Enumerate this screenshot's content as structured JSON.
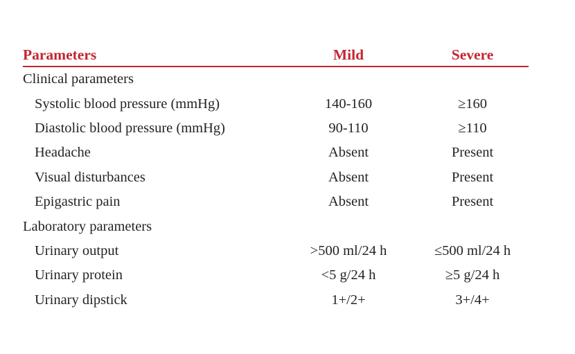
{
  "colors": {
    "accent": "#c32530",
    "text": "#262223",
    "background": "#ffffff"
  },
  "table": {
    "columns": {
      "parameters": "Parameters",
      "mild": "Mild",
      "severe": "Severe"
    },
    "sections": [
      {
        "label": "Clinical parameters",
        "rows": [
          {
            "parameter": "Systolic blood pressure (mmHg)",
            "mild": "140-160",
            "severe": "≥160"
          },
          {
            "parameter": "Diastolic blood pressure (mmHg)",
            "mild": "90-110",
            "severe": "≥110"
          },
          {
            "parameter": "Headache",
            "mild": "Absent",
            "severe": "Present"
          },
          {
            "parameter": "Visual disturbances",
            "mild": "Absent",
            "severe": "Present"
          },
          {
            "parameter": "Epigastric pain",
            "mild": "Absent",
            "severe": "Present"
          }
        ]
      },
      {
        "label": "Laboratory parameters",
        "rows": [
          {
            "parameter": "Urinary output",
            "mild": ">500 ml/24 h",
            "severe": "≤500 ml/24 h"
          },
          {
            "parameter": "Urinary protein",
            "mild": "<5 g/24 h",
            "severe": "≥5 g/24 h"
          },
          {
            "parameter": "Urinary dipstick",
            "mild": "1+/2+",
            "severe": "3+/4+"
          }
        ]
      }
    ]
  }
}
